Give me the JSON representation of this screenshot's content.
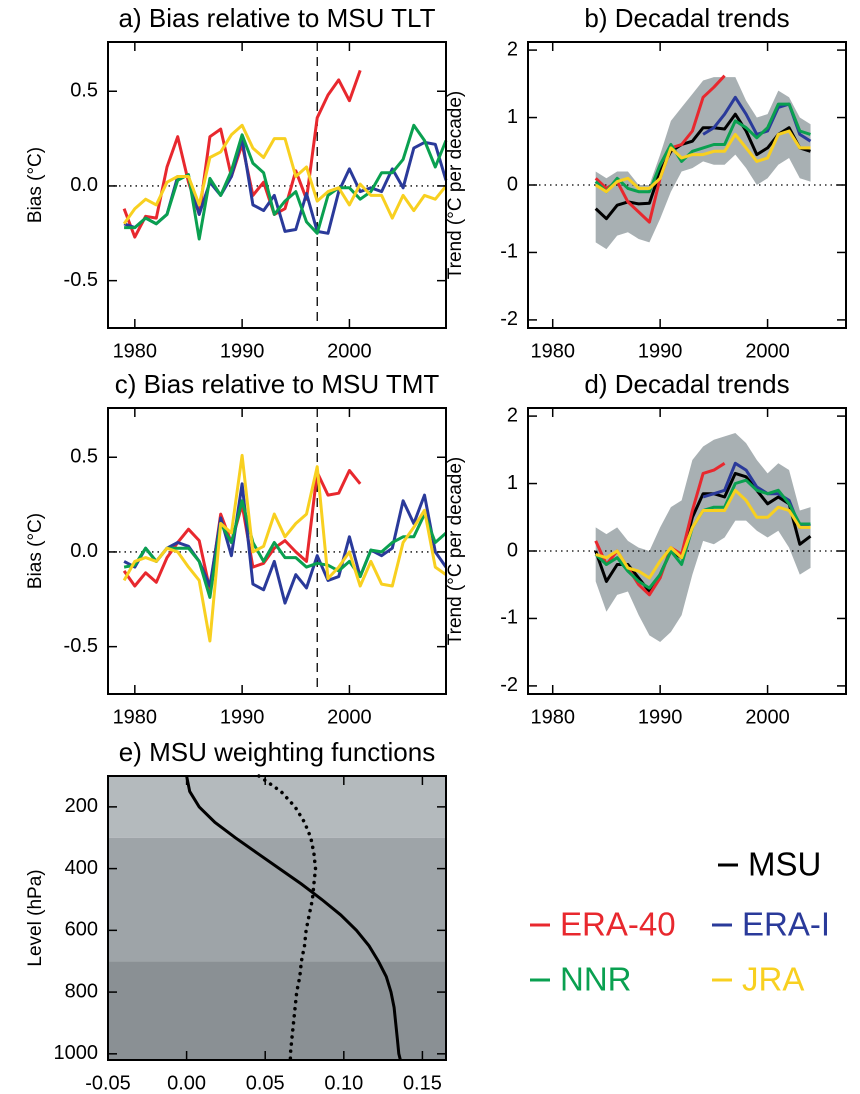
{
  "chart_data": [
    {
      "type": "line",
      "title": "a) Bias relative to MSU TLT",
      "y_label": "Bias (°C)",
      "x": [
        1979,
        1980,
        1981,
        1982,
        1983,
        1984,
        1985,
        1986,
        1987,
        1988,
        1989,
        1990,
        1991,
        1992,
        1993,
        1994,
        1995,
        1996,
        1997,
        1998,
        1999,
        2000,
        2001,
        2002,
        2003,
        2004,
        2005,
        2006,
        2007,
        2008,
        2009
      ],
      "xlim": [
        1977.5,
        2009
      ],
      "ylim": [
        -0.75,
        0.76
      ],
      "xticks": [
        1980,
        1990,
        2000
      ],
      "yticks": [
        0.5,
        {
          "value": 0,
          "label": "0.0"
        },
        -0.5
      ],
      "vline": 1997,
      "hline": 0,
      "series": [
        {
          "color": "#e8282e",
          "values": [
            -0.12,
            -0.27,
            -0.16,
            -0.17,
            0.1,
            0.26,
            0.02,
            -0.15,
            0.26,
            0.3,
            0.05,
            0.22,
            -0.05,
            0.02,
            -0.15,
            -0.12,
            0.08,
            -0.07,
            0.36,
            0.48,
            0.56,
            0.45,
            0.61,
            null,
            null,
            null,
            null,
            null,
            null,
            null,
            null
          ]
        },
        {
          "color": "#2a3a9a",
          "values": [
            -0.2,
            -0.22,
            -0.17,
            -0.2,
            -0.15,
            0.05,
            0.05,
            -0.15,
            0.02,
            -0.05,
            0.05,
            0.25,
            -0.1,
            -0.13,
            -0.05,
            -0.24,
            -0.23,
            -0.04,
            -0.24,
            -0.25,
            -0.03,
            0.09,
            -0.03,
            -0.01,
            -0.03,
            0.09,
            -0.01,
            0.2,
            0.23,
            0.22,
            0.03
          ]
        },
        {
          "color": "#0aa050",
          "values": [
            -0.22,
            -0.22,
            -0.17,
            -0.2,
            -0.15,
            0.03,
            0.06,
            -0.28,
            0.04,
            -0.05,
            0.08,
            0.27,
            0.12,
            0.07,
            -0.15,
            -0.08,
            -0.03,
            -0.19,
            -0.25,
            -0.05,
            -0.01,
            -0.01,
            -0.07,
            -0.03,
            0.07,
            0.07,
            0.14,
            0.32,
            0.24,
            0.1,
            0.24
          ]
        },
        {
          "color": "#f8d020",
          "values": [
            -0.2,
            -0.12,
            -0.07,
            -0.1,
            0.02,
            0.05,
            0.05,
            -0.1,
            0.15,
            0.18,
            0.27,
            0.32,
            0.2,
            0.15,
            0.25,
            0.25,
            0.05,
            0.1,
            -0.08,
            -0.03,
            -0.01,
            -0.1,
            0.01,
            -0.05,
            -0.05,
            -0.17,
            -0.05,
            -0.13,
            -0.05,
            -0.07,
            0.0
          ]
        }
      ]
    },
    {
      "type": "line",
      "title": "b) Decadal trends",
      "y_label": "Trend (°C per decade)",
      "x": [
        1984,
        1985,
        1986,
        1987,
        1988,
        1989,
        1990,
        1991,
        1992,
        1993,
        1994,
        1995,
        1996,
        1997,
        1998,
        1999,
        2000,
        2001,
        2002,
        2003,
        2004
      ],
      "xlim": [
        1977.7,
        2007.3
      ],
      "ylim": [
        -2.12,
        2.12
      ],
      "xticks": [
        1980,
        1990,
        2000
      ],
      "yticks": [
        2,
        1,
        0,
        -1,
        -2
      ],
      "hline": 0,
      "band": {
        "color": "#a8b0b3",
        "lower": [
          -0.85,
          -0.95,
          -0.75,
          -0.7,
          -0.8,
          -0.85,
          -0.5,
          -0.1,
          0.2,
          0.25,
          0.35,
          0.3,
          0.3,
          0.45,
          0.25,
          0.0,
          0.1,
          0.3,
          0.4,
          0.1,
          0.05
        ],
        "upper": [
          0.2,
          0.1,
          0.2,
          0.2,
          0.0,
          0.0,
          0.45,
          0.95,
          1.15,
          1.35,
          1.55,
          1.6,
          1.6,
          1.6,
          1.25,
          1.0,
          1.05,
          1.4,
          1.3,
          1.0,
          0.9
        ]
      },
      "series": [
        {
          "name": "MSU",
          "color": "#000000",
          "values": [
            -0.35,
            -0.5,
            -0.3,
            -0.25,
            -0.28,
            -0.27,
            0.2,
            0.5,
            0.6,
            0.65,
            0.85,
            0.85,
            0.83,
            1.05,
            0.8,
            0.45,
            0.55,
            0.75,
            0.85,
            0.55,
            0.5
          ]
        },
        {
          "name": "ERA-40",
          "color": "#e8282e",
          "values": [
            0.1,
            -0.05,
            0.05,
            -0.25,
            -0.4,
            -0.55,
            0.1,
            0.55,
            0.6,
            0.8,
            1.3,
            1.45,
            1.62,
            null,
            null,
            null,
            null,
            null,
            null,
            null,
            null
          ]
        },
        {
          "name": "ERA-I",
          "color": "#2a3a9a",
          "values": [
            null,
            null,
            null,
            null,
            null,
            null,
            null,
            null,
            null,
            null,
            0.75,
            0.85,
            1.05,
            1.3,
            1.05,
            0.75,
            0.8,
            1.15,
            1.2,
            0.75,
            0.65
          ]
        },
        {
          "name": "NNR",
          "color": "#0aa050",
          "values": [
            0.05,
            -0.1,
            0.1,
            -0.05,
            -0.1,
            -0.1,
            0.3,
            0.6,
            0.35,
            0.5,
            0.55,
            0.6,
            0.6,
            0.95,
            0.85,
            0.7,
            0.85,
            1.2,
            1.2,
            0.8,
            0.75
          ]
        },
        {
          "name": "JRA",
          "color": "#f8d020",
          "values": [
            0.0,
            -0.1,
            0.05,
            0.1,
            -0.05,
            -0.05,
            0.1,
            0.55,
            0.4,
            0.45,
            0.45,
            0.5,
            0.5,
            0.75,
            0.55,
            0.35,
            0.4,
            0.75,
            0.8,
            0.55,
            0.55
          ]
        }
      ]
    },
    {
      "type": "line",
      "title": "c) Bias relative to MSU TMT",
      "y_label": "Bias (°C)",
      "x": [
        1979,
        1980,
        1981,
        1982,
        1983,
        1984,
        1985,
        1986,
        1987,
        1988,
        1989,
        1990,
        1991,
        1992,
        1993,
        1994,
        1995,
        1996,
        1997,
        1998,
        1999,
        2000,
        2001,
        2002,
        2003,
        2004,
        2005,
        2006,
        2007,
        2008,
        2009
      ],
      "xlim": [
        1977.5,
        2009
      ],
      "ylim": [
        -0.75,
        0.76
      ],
      "xticks": [
        1980,
        1990,
        2000
      ],
      "yticks": [
        0.5,
        {
          "value": 0,
          "label": "0.0"
        },
        -0.5
      ],
      "vline": 1997,
      "hline": 0,
      "series": [
        {
          "color": "#e8282e",
          "values": [
            -0.1,
            -0.18,
            -0.11,
            -0.16,
            -0.03,
            0.05,
            0.12,
            0.06,
            -0.2,
            0.2,
            0.05,
            0.25,
            -0.08,
            -0.06,
            0.02,
            0.06,
            0.0,
            -0.05,
            0.42,
            0.3,
            0.31,
            0.43,
            0.36,
            null,
            null,
            null,
            null,
            null,
            null,
            null,
            null
          ]
        },
        {
          "color": "#2a3a9a",
          "values": [
            -0.05,
            -0.08,
            0.02,
            -0.05,
            0.02,
            0.05,
            0.03,
            -0.05,
            -0.18,
            0.18,
            -0.02,
            0.36,
            -0.17,
            -0.2,
            -0.05,
            -0.27,
            -0.12,
            -0.19,
            -0.02,
            -0.15,
            -0.13,
            0.08,
            -0.13,
            0.01,
            -0.02,
            0.02,
            0.27,
            0.15,
            0.3,
            0.0,
            -0.08
          ]
        },
        {
          "color": "#0aa050",
          "values": [
            -0.08,
            -0.07,
            0.02,
            -0.05,
            0.02,
            0.02,
            0.02,
            -0.05,
            -0.24,
            0.15,
            0.05,
            0.27,
            0.05,
            -0.05,
            0.05,
            -0.03,
            -0.03,
            -0.08,
            -0.06,
            -0.07,
            -0.1,
            -0.05,
            -0.13,
            0.01,
            0.0,
            0.05,
            0.08,
            0.08,
            0.2,
            0.05,
            0.1
          ]
        },
        {
          "color": "#f8d020",
          "values": [
            -0.15,
            -0.05,
            -0.03,
            -0.05,
            0.02,
            0.0,
            -0.08,
            -0.15,
            -0.47,
            0.15,
            0.1,
            0.51,
            0.0,
            0.03,
            0.2,
            0.08,
            0.15,
            0.2,
            0.45,
            -0.14,
            -0.08,
            0.0,
            -0.18,
            -0.05,
            -0.17,
            -0.18,
            0.05,
            0.13,
            0.22,
            -0.08,
            -0.12
          ]
        }
      ]
    },
    {
      "type": "line",
      "title": "d) Decadal trends",
      "y_label": "Trend (°C per decade)",
      "x": [
        1984,
        1985,
        1986,
        1987,
        1988,
        1989,
        1990,
        1991,
        1992,
        1993,
        1994,
        1995,
        1996,
        1997,
        1998,
        1999,
        2000,
        2001,
        2002,
        2003,
        2004
      ],
      "xlim": [
        1977.7,
        2007.3
      ],
      "ylim": [
        -2.12,
        2.12
      ],
      "xticks": [
        1980,
        1990,
        2000
      ],
      "yticks": [
        2,
        1,
        0,
        -1,
        -2
      ],
      "hline": 0,
      "band": {
        "color": "#a8b0b3",
        "lower": [
          -0.45,
          -0.9,
          -0.65,
          -0.6,
          -0.95,
          -1.25,
          -1.35,
          -1.2,
          -0.95,
          -0.35,
          0.15,
          0.1,
          0.2,
          0.45,
          0.45,
          0.3,
          0.2,
          0.3,
          0.05,
          -0.35,
          -0.25
        ],
        "upper": [
          0.35,
          0.25,
          0.35,
          0.15,
          0.05,
          0.0,
          0.35,
          0.65,
          0.75,
          1.35,
          1.55,
          1.65,
          1.7,
          1.75,
          1.6,
          1.35,
          1.15,
          1.3,
          1.2,
          0.6,
          0.65
        ]
      },
      "series": [
        {
          "color": "#000000",
          "values": [
            0.0,
            -0.45,
            -0.2,
            -0.2,
            -0.4,
            -0.6,
            -0.35,
            0.0,
            -0.1,
            0.5,
            0.85,
            0.85,
            0.8,
            1.15,
            1.1,
            0.9,
            0.7,
            0.8,
            0.7,
            0.1,
            0.22
          ]
        },
        {
          "color": "#e8282e",
          "values": [
            0.15,
            -0.2,
            0.0,
            -0.25,
            -0.5,
            -0.65,
            -0.4,
            0.05,
            -0.05,
            0.6,
            1.15,
            1.2,
            1.3,
            null,
            null,
            null,
            null,
            null,
            null,
            null,
            null
          ]
        },
        {
          "color": "#2a3a9a",
          "values": [
            null,
            null,
            null,
            null,
            null,
            null,
            null,
            null,
            null,
            null,
            0.8,
            0.85,
            0.9,
            1.3,
            1.2,
            0.95,
            0.85,
            0.85,
            0.75,
            0.35,
            0.4
          ]
        },
        {
          "color": "#0aa050",
          "values": [
            -0.05,
            -0.2,
            -0.1,
            -0.3,
            -0.45,
            -0.55,
            -0.35,
            0.0,
            -0.2,
            0.35,
            0.6,
            0.65,
            0.65,
            1.0,
            1.05,
            0.9,
            0.85,
            0.9,
            0.7,
            0.4,
            0.4
          ]
        },
        {
          "color": "#f8d020",
          "values": [
            -0.05,
            -0.1,
            0.0,
            -0.25,
            -0.3,
            -0.4,
            -0.15,
            0.05,
            -0.1,
            0.35,
            0.6,
            0.6,
            0.6,
            0.9,
            0.75,
            0.5,
            0.5,
            0.65,
            0.6,
            0.35,
            0.35
          ]
        }
      ]
    },
    {
      "type": "profile",
      "title": "e) MSU weighting functions",
      "y_label": "Level (hPa)",
      "levels": [
        100,
        150,
        200,
        250,
        300,
        350,
        400,
        450,
        500,
        550,
        600,
        650,
        700,
        750,
        800,
        850,
        900,
        950,
        1000,
        1020
      ],
      "xlim": [
        -0.05,
        0.165
      ],
      "ylim": [
        1020,
        100
      ],
      "xticks": [
        -0.05,
        {
          "value": 0,
          "label": "0.00"
        },
        0.05,
        {
          "value": 0.1,
          "label": "0.10"
        },
        0.15
      ],
      "yticks": [
        200,
        400,
        600,
        800,
        1000
      ],
      "layers": [
        {
          "from": 100,
          "to": 300,
          "color": "#b4babd"
        },
        {
          "from": 300,
          "to": 700,
          "color": "#9ea4a8"
        },
        {
          "from": 700,
          "to": 1020,
          "color": "#8a9094"
        }
      ],
      "series": [
        {
          "color": "#000000",
          "style": "solid",
          "values": [
            0.0,
            0.002,
            0.008,
            0.018,
            0.031,
            0.045,
            0.059,
            0.073,
            0.086,
            0.098,
            0.108,
            0.116,
            0.122,
            0.127,
            0.13,
            0.132,
            0.133,
            0.134,
            0.135,
            0.136
          ]
        },
        {
          "color": "#000000",
          "style": "dotted",
          "values": [
            0.046,
            0.06,
            0.069,
            0.075,
            0.079,
            0.081,
            0.082,
            0.081,
            0.08,
            0.078,
            0.076,
            0.075,
            0.073,
            0.072,
            0.07,
            0.069,
            0.068,
            0.067,
            0.066,
            0.066
          ]
        }
      ]
    }
  ]
}
